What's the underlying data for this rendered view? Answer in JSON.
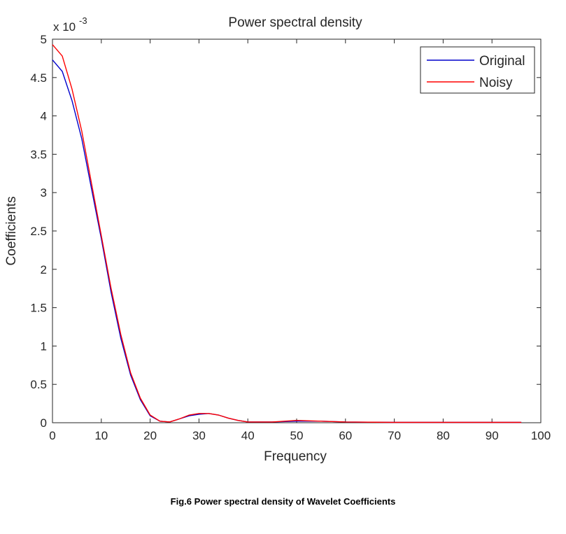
{
  "chart_data": {
    "type": "line",
    "title": "Power spectral density",
    "xlabel": "Frequency",
    "ylabel": "Coefficients",
    "y_exponent_label": "x 10",
    "y_exponent_power": "-3",
    "xlim": [
      0,
      100
    ],
    "ylim": [
      0,
      5
    ],
    "x_ticks": [
      "0",
      "10",
      "20",
      "30",
      "40",
      "50",
      "60",
      "70",
      "80",
      "90",
      "100"
    ],
    "y_ticks": [
      "0",
      "0.5",
      "1",
      "1.5",
      "2",
      "2.5",
      "3",
      "3.5",
      "4",
      "4.5",
      "5"
    ],
    "grid": false,
    "legend_position": "top-right",
    "x": [
      0,
      2,
      4,
      6,
      8,
      10,
      12,
      14,
      16,
      18,
      20,
      22,
      24,
      26,
      28,
      30,
      32,
      34,
      36,
      38,
      40,
      45,
      50,
      55,
      60,
      70,
      80,
      90,
      96
    ],
    "series": [
      {
        "name": "Original",
        "color": "#0000cc",
        "values": [
          4.73,
          4.58,
          4.2,
          3.7,
          3.05,
          2.4,
          1.7,
          1.1,
          0.62,
          0.3,
          0.09,
          0.02,
          0.01,
          0.05,
          0.09,
          0.11,
          0.12,
          0.1,
          0.06,
          0.03,
          0.01,
          0.01,
          0.02,
          0.02,
          0.01,
          0.005,
          0.005,
          0.005,
          0.005
        ]
      },
      {
        "name": "Noisy",
        "color": "#ff0000",
        "values": [
          4.93,
          4.78,
          4.35,
          3.8,
          3.12,
          2.44,
          1.75,
          1.15,
          0.65,
          0.32,
          0.1,
          0.02,
          0.01,
          0.05,
          0.1,
          0.12,
          0.12,
          0.1,
          0.06,
          0.03,
          0.01,
          0.01,
          0.03,
          0.02,
          0.01,
          0.005,
          0.005,
          0.005,
          0.005
        ]
      }
    ]
  },
  "caption": "Fig.6 Power spectral density of Wavelet Coefficients"
}
